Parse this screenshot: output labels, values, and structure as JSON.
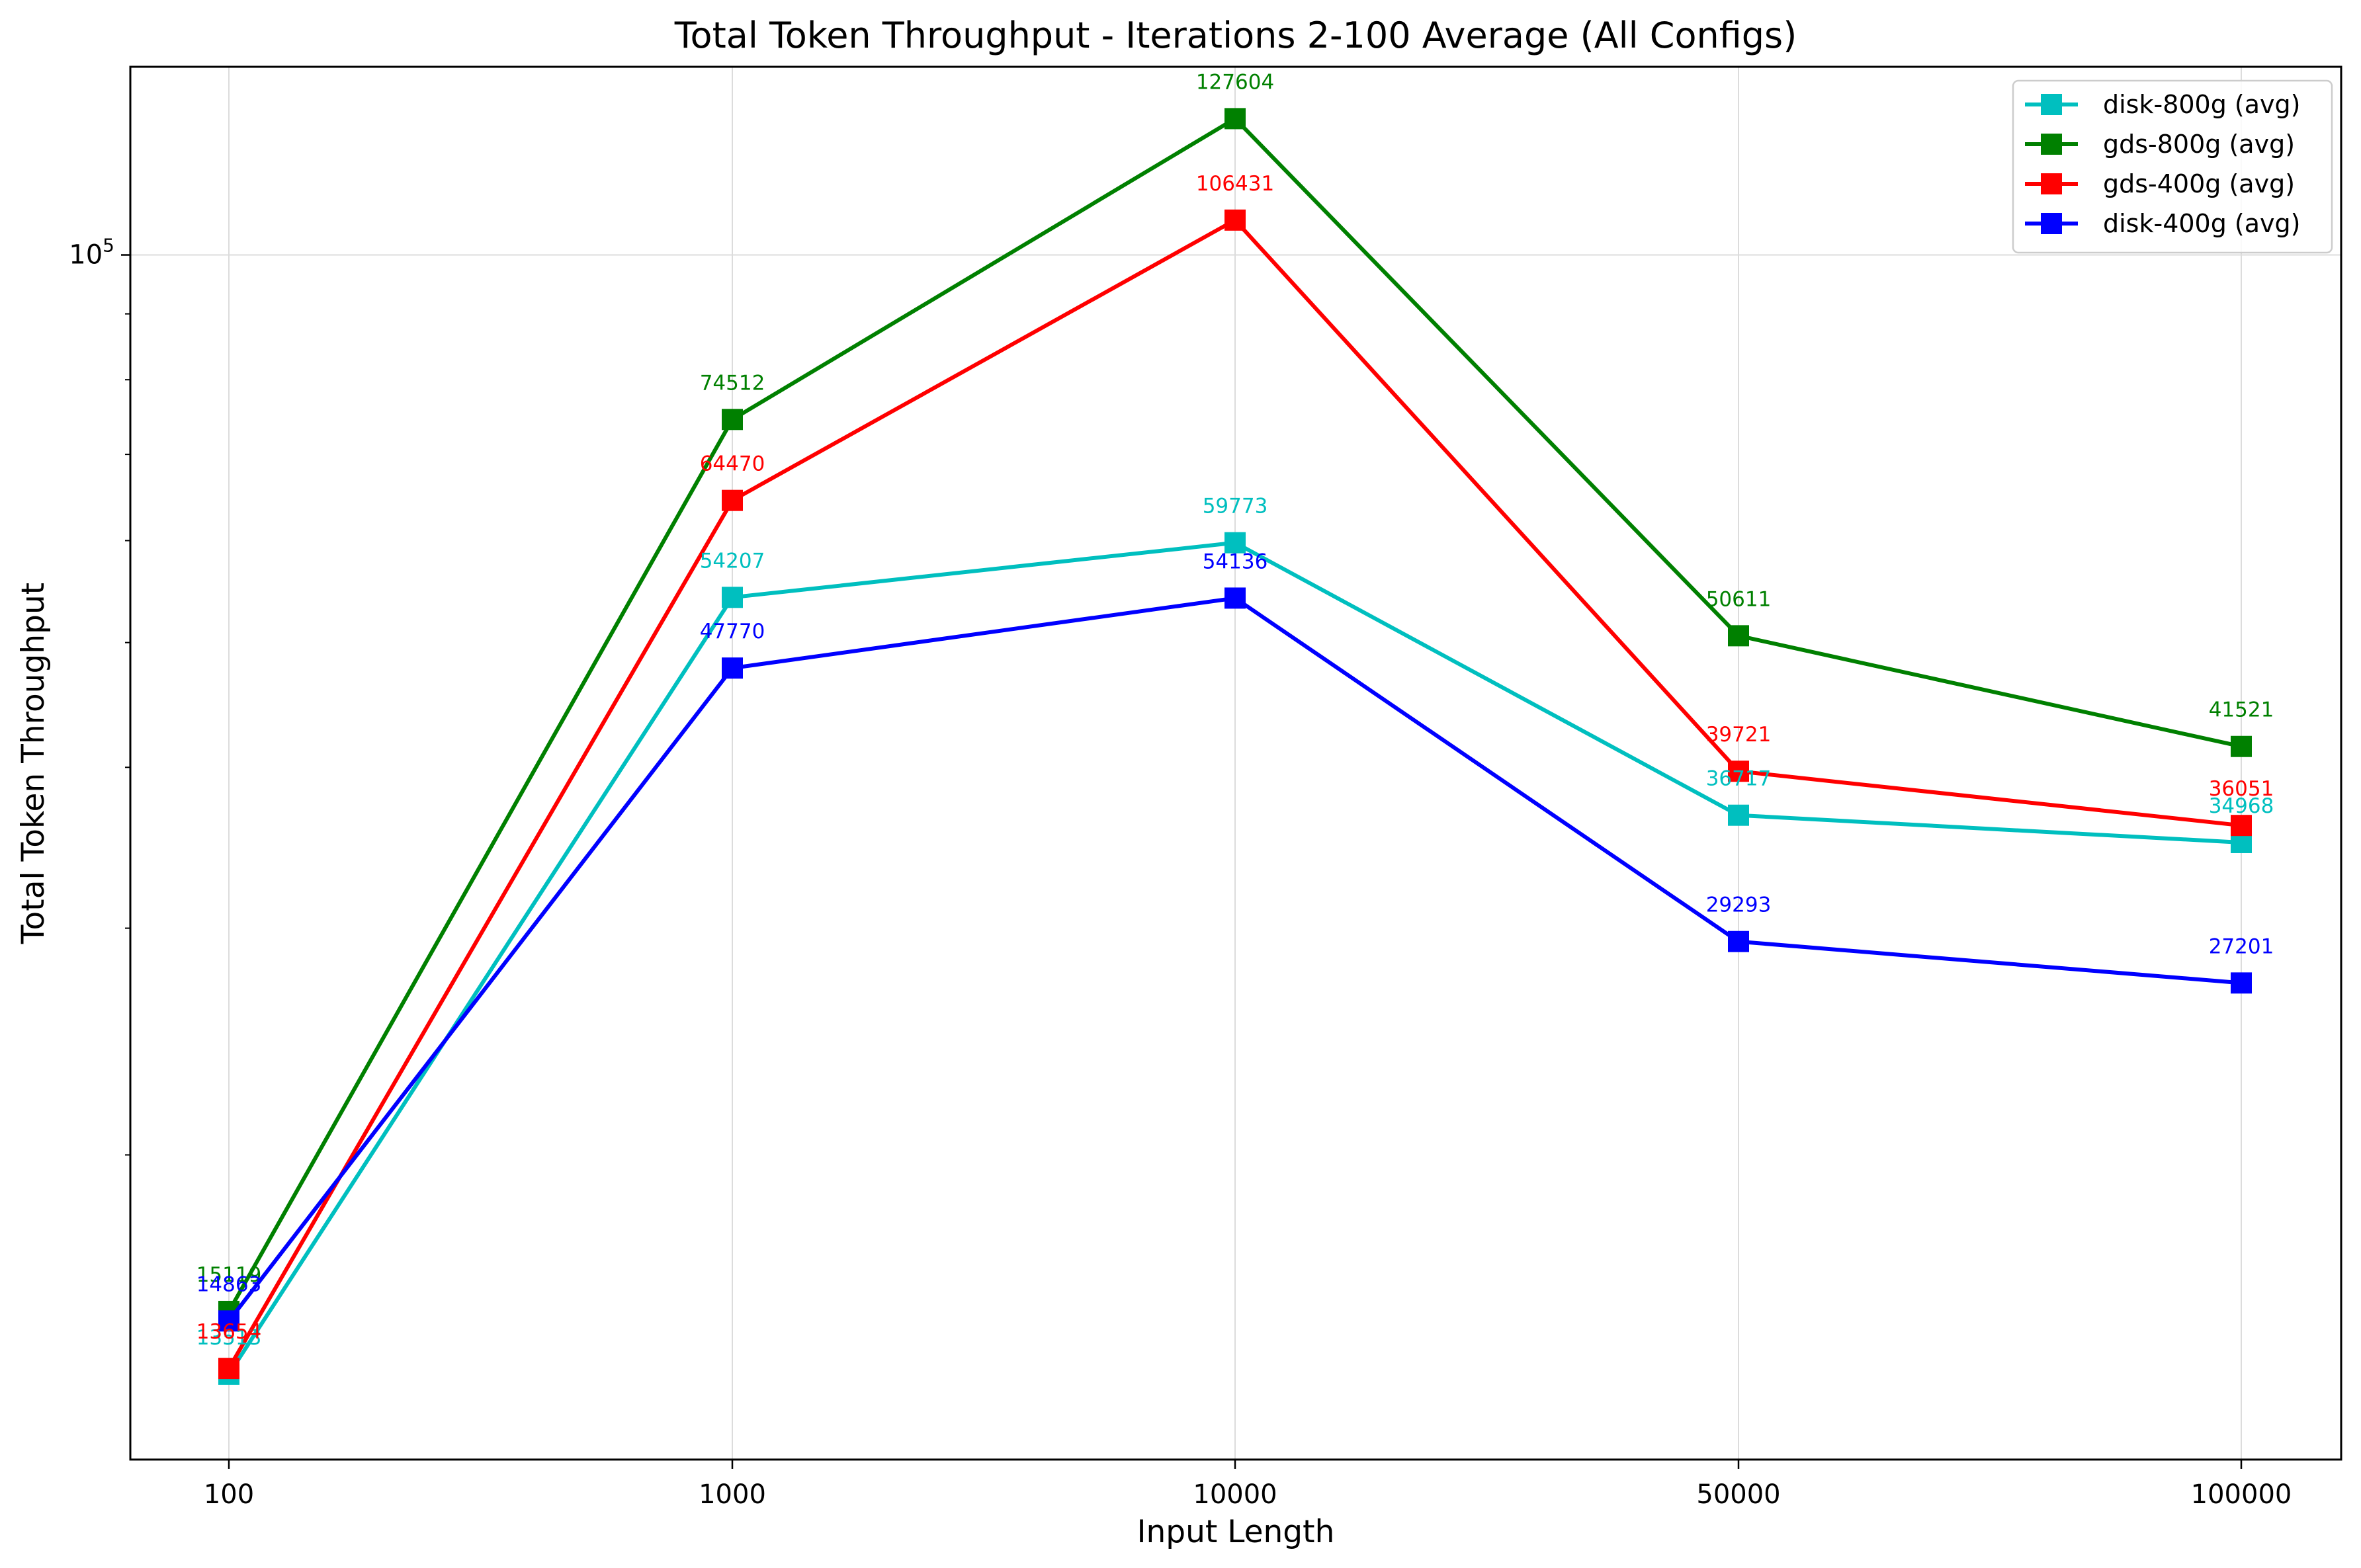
{
  "chart_data": {
    "type": "line",
    "title": "Total Token Throughput - Iterations 2-100 Average (All Configs)",
    "xlabel": "Input Length",
    "ylabel": "Total Token Throughput",
    "x_scale": "categorical",
    "y_scale": "log",
    "categories": [
      "100",
      "1000",
      "10000",
      "50000",
      "100000"
    ],
    "ylim": [
      11600,
      140000
    ],
    "y_ticks": [
      {
        "value": 100000,
        "label_base": "10",
        "label_exp": "5"
      }
    ],
    "grid": true,
    "legend_position": "top-right",
    "marker": "square",
    "series": [
      {
        "name": "disk-800g (avg)",
        "color": "#00bfbf",
        "values": [
          13513,
          54207,
          59773,
          36717,
          34968
        ],
        "labels": [
          "13513",
          "54207",
          "59773",
          "36717",
          "34968"
        ]
      },
      {
        "name": "gds-800g (avg)",
        "color": "#008000",
        "values": [
          15119,
          74512,
          127604,
          50611,
          41521
        ],
        "labels": [
          "15119",
          "74512",
          "127604",
          "50611",
          "41521"
        ]
      },
      {
        "name": "gds-400g (avg)",
        "color": "#ff0000",
        "values": [
          13654,
          64470,
          106431,
          39721,
          36051
        ],
        "labels": [
          "13654",
          "64470",
          "106431",
          "39721",
          "36051"
        ]
      },
      {
        "name": "disk-400g (avg)",
        "color": "#0000ff",
        "values": [
          14863,
          47770,
          54136,
          29293,
          27201
        ],
        "labels": [
          "14863",
          "47770",
          "54136",
          "29293",
          "27201"
        ]
      }
    ]
  }
}
